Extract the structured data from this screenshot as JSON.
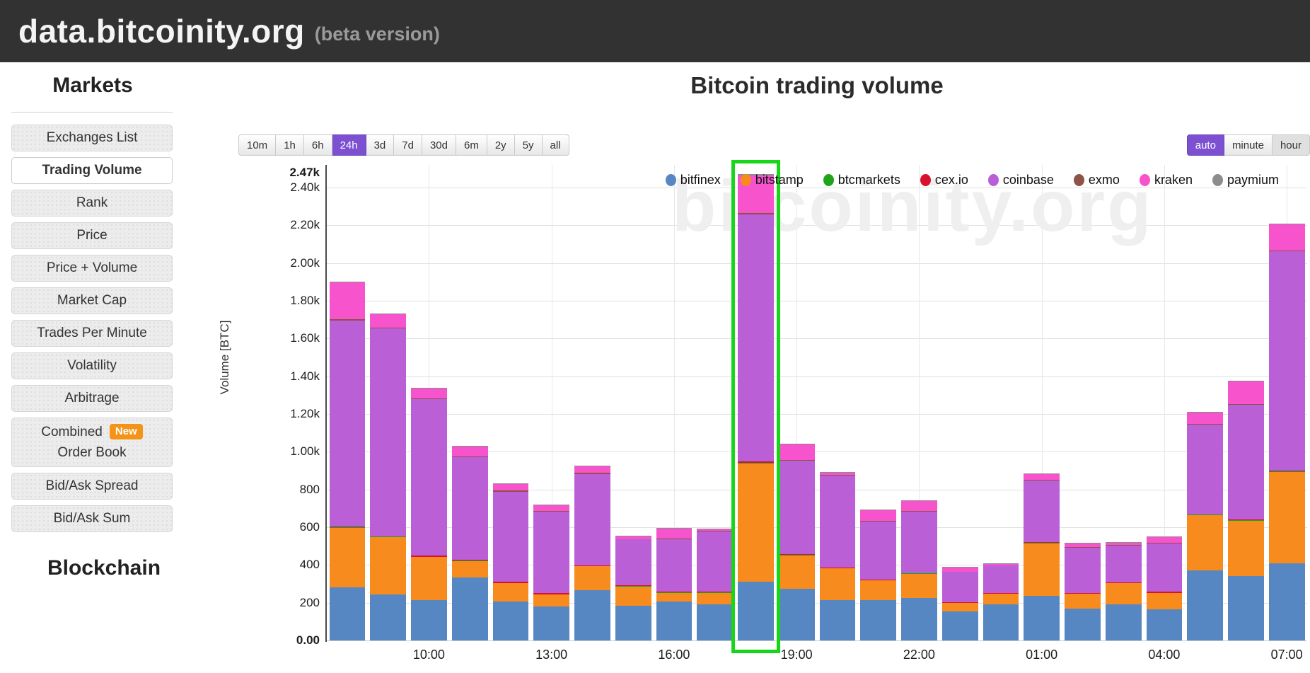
{
  "header": {
    "title": "data.bitcoinity.org",
    "subtitle": "(beta version)"
  },
  "sidebar": {
    "markets_heading": "Markets",
    "blockchain_heading": "Blockchain",
    "items": [
      {
        "label": "Exchanges List",
        "active": false
      },
      {
        "label": "Trading Volume",
        "active": true
      },
      {
        "label": "Rank",
        "active": false
      },
      {
        "label": "Price",
        "active": false
      },
      {
        "label": "Price + Volume",
        "active": false
      },
      {
        "label": "Market Cap",
        "active": false
      },
      {
        "label": "Trades Per Minute",
        "active": false
      },
      {
        "label": "Volatility",
        "active": false
      },
      {
        "label": "Arbitrage",
        "active": false
      },
      {
        "label": "Combined Order Book",
        "lines": [
          "Combined",
          "Order Book"
        ],
        "badge": "New",
        "active": false
      },
      {
        "label": "Bid/Ask Spread",
        "active": false
      },
      {
        "label": "Bid/Ask Sum",
        "active": false
      }
    ]
  },
  "main": {
    "title": "Bitcoin trading volume",
    "watermark": "bitcoinity.org",
    "time_ranges": [
      "10m",
      "1h",
      "6h",
      "24h",
      "3d",
      "7d",
      "30d",
      "6m",
      "2y",
      "5y",
      "all"
    ],
    "selected_time_range": "24h",
    "resolutions": [
      "auto",
      "minute",
      "hour"
    ],
    "selected_resolution": "auto",
    "accent_color": "#7c50d1",
    "highlight_color": "#17d517"
  },
  "chart_data": {
    "type": "bar",
    "stacked": true,
    "title": "Bitcoin trading volume",
    "xlabel": "",
    "ylabel": "Volume [BTC]",
    "ylim": [
      0,
      2520
    ],
    "gridline_step": 200,
    "grid": true,
    "legend_position": "top-right",
    "y_max_marker": {
      "value": 2470,
      "label": "2.47k"
    },
    "y_min_marker": {
      "value": 0,
      "label": "0.00"
    },
    "categories": [
      "08:00",
      "09:00",
      "10:00",
      "11:00",
      "12:00",
      "13:00",
      "14:00",
      "15:00",
      "16:00",
      "17:00",
      "18:00",
      "19:00",
      "20:00",
      "21:00",
      "22:00",
      "23:00",
      "00:00",
      "01:00",
      "02:00",
      "03:00",
      "04:00",
      "05:00",
      "06:00",
      "07:00"
    ],
    "x_tick_labels": [
      "10:00",
      "13:00",
      "16:00",
      "19:00",
      "22:00",
      "01:00",
      "04:00",
      "07:00"
    ],
    "x_tick_indices": [
      2,
      5,
      8,
      11,
      14,
      17,
      20,
      23
    ],
    "highlighted_category": "18:00",
    "highlighted_index": 10,
    "series": [
      {
        "name": "bitfinex",
        "color": "#5787c2",
        "values": [
          280,
          245,
          213,
          335,
          208,
          180,
          265,
          185,
          205,
          190,
          312,
          275,
          212,
          215,
          226,
          154,
          190,
          237,
          170,
          192,
          164,
          373,
          342,
          410
        ]
      },
      {
        "name": "bitstamp",
        "color": "#f78b1e",
        "values": [
          318,
          303,
          228,
          85,
          95,
          63,
          128,
          100,
          47,
          62,
          625,
          176,
          170,
          103,
          127,
          44,
          56,
          278,
          77,
          110,
          87,
          290,
          292,
          482
        ]
      },
      {
        "name": "btcmarkets",
        "color": "#1fa41b",
        "values": [
          2,
          2,
          2,
          2,
          2,
          2,
          2,
          2,
          2,
          2,
          4,
          3,
          2,
          2,
          2,
          2,
          2,
          3,
          2,
          2,
          2,
          3,
          3,
          4
        ]
      },
      {
        "name": "cex.io",
        "color": "#d8112e",
        "values": [
          3,
          3,
          6,
          4,
          5,
          5,
          3,
          4,
          4,
          5,
          6,
          3,
          3,
          4,
          3,
          4,
          5,
          3,
          4,
          4,
          4,
          3,
          3,
          3
        ]
      },
      {
        "name": "coinbase",
        "color": "#ba5fd6",
        "values": [
          1092,
          1100,
          828,
          545,
          478,
          432,
          484,
          244,
          280,
          320,
          1310,
          494,
          485,
          305,
          324,
          158,
          143,
          327,
          238,
          196,
          256,
          473,
          608,
          1162
        ]
      },
      {
        "name": "exmo",
        "color": "#8e5247",
        "values": [
          6,
          6,
          4,
          4,
          6,
          4,
          5,
          3,
          3,
          3,
          8,
          4,
          4,
          4,
          3,
          3,
          3,
          3,
          3,
          3,
          3,
          4,
          4,
          5
        ]
      },
      {
        "name": "kraken",
        "color": "#f653cd",
        "values": [
          196,
          68,
          55,
          52,
          33,
          32,
          36,
          13,
          53,
          6,
          200,
          84,
          12,
          58,
          52,
          21,
          7,
          32,
          19,
          12,
          32,
          62,
          120,
          138
        ]
      },
      {
        "name": "paymium",
        "color": "#8d8d8d",
        "values": [
          3,
          3,
          4,
          3,
          3,
          2,
          2,
          2,
          3,
          2,
          5,
          2,
          2,
          2,
          3,
          2,
          2,
          2,
          2,
          2,
          2,
          3,
          3,
          4
        ]
      }
    ],
    "totals": [
      1900,
      1730,
      1340,
      1030,
      830,
      720,
      925,
      553,
      597,
      590,
      2470,
      1041,
      890,
      693,
      740,
      388,
      408,
      885,
      515,
      521,
      550,
      1211,
      1375,
      2208
    ]
  }
}
